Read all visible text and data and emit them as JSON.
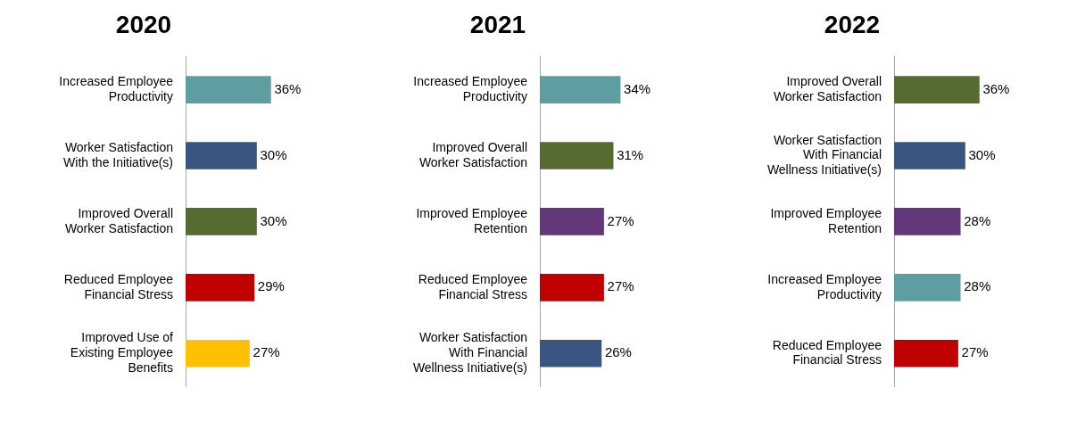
{
  "chart_data": [
    {
      "type": "bar",
      "orientation": "horizontal",
      "title": "2020",
      "categories": [
        "Increased Employee Productivity",
        "Worker Satisfaction With the Initiative(s)",
        "Improved Overall Worker Satisfaction",
        "Reduced Employee Financial Stress",
        "Improved Use of Existing Employee Benefits"
      ],
      "values": [
        36,
        30,
        30,
        29,
        27
      ],
      "colors": [
        "#5f9ea0",
        "#3a5580",
        "#556b2f",
        "#c00000",
        "#ffc000"
      ],
      "value_labels": [
        "36%",
        "30%",
        "30%",
        "29%",
        "27%"
      ],
      "tick_labels": "y",
      "legend": false
    },
    {
      "type": "bar",
      "orientation": "horizontal",
      "title": "2021",
      "categories": [
        "Increased Employee Productivity",
        "Improved Overall Worker Satisfaction",
        "Improved Employee Retention",
        "Reduced Employee Financial Stress",
        "Worker Satisfaction With Financial Wellness Initiative(s)"
      ],
      "values": [
        34,
        31,
        27,
        27,
        26
      ],
      "colors": [
        "#5f9ea0",
        "#556b2f",
        "#63377a",
        "#c00000",
        "#3a5580"
      ],
      "value_labels": [
        "34%",
        "31%",
        "27%",
        "27%",
        "26%"
      ],
      "tick_labels": "y",
      "legend": false
    },
    {
      "type": "bar",
      "orientation": "horizontal",
      "title": "2022",
      "categories": [
        "Improved Overall Worker Satisfaction",
        "Worker Satisfaction With Financial Wellness Initiative(s)",
        "Improved Employee Retention",
        "Increased Employee Productivity",
        "Reduced Employee Financial Stress"
      ],
      "values": [
        36,
        30,
        28,
        28,
        27
      ],
      "colors": [
        "#556b2f",
        "#3a5580",
        "#63377a",
        "#5f9ea0",
        "#c00000"
      ],
      "value_labels": [
        "36%",
        "30%",
        "28%",
        "28%",
        "27%"
      ],
      "tick_labels": "y",
      "legend": false
    }
  ]
}
